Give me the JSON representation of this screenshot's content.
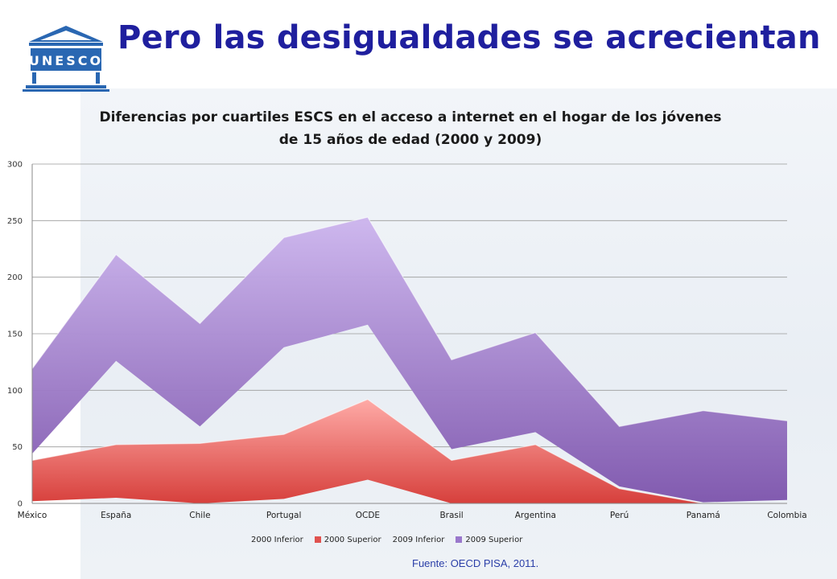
{
  "slide": {
    "title": "Pero las desigualdades se acrecientan",
    "source": "Fuente: OECD PISA, 2011.",
    "logo_text": "UNESCO"
  },
  "colors": {
    "title": "#1f1f9e",
    "series_2000_superior": "#e0524f",
    "series_2009_superior": "#9a78cc",
    "logo": "#2a67b2"
  },
  "chart_data": {
    "type": "area",
    "stacked": true,
    "title_line1": "Diferencias por cuartiles ESCS en el acceso a internet en el hogar de los jóvenes",
    "title_line2": "de 15 años de edad (2000  y 2009)",
    "categories": [
      "México",
      "España",
      "Chile",
      "Portugal",
      "OCDE",
      "Brasil",
      "Argentina",
      "Perú",
      "Panamá",
      "Colombia"
    ],
    "ylim": [
      0,
      300
    ],
    "yticks": [
      0,
      50,
      100,
      150,
      200,
      250,
      300
    ],
    "grid": true,
    "legend_position": "bottom",
    "series": [
      {
        "name": "2000 Inferior",
        "values": [
          2,
          5,
          0,
          4,
          21,
          0,
          0,
          0,
          0,
          0
        ],
        "color": "none"
      },
      {
        "name": "2000 Superior",
        "values": [
          36,
          47,
          53,
          57,
          71,
          38,
          52,
          13,
          0,
          0
        ],
        "color": "#e0524f"
      },
      {
        "name": "2009 Inferior",
        "values": [
          6,
          74,
          15,
          77,
          66,
          10,
          11,
          2,
          1,
          3
        ],
        "color": "none"
      },
      {
        "name": "2009 Superior",
        "values": [
          75,
          94,
          91,
          97,
          95,
          79,
          88,
          53,
          81,
          70
        ],
        "color": "#9a78cc"
      }
    ]
  }
}
